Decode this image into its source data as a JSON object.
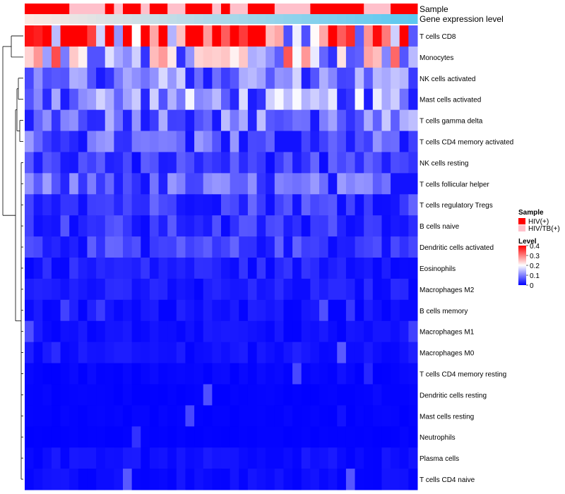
{
  "chart_data": {
    "type": "heatmap",
    "annotation_tracks": [
      {
        "label": "Sample"
      },
      {
        "label": "Gene expression level"
      }
    ],
    "sample_groups": [
      "HIV(+)",
      "HIV/TB(+)",
      "HIV(+)",
      "HIV/TB(+)",
      "HIV(+)",
      "HIV/TB(+)",
      "HIV(+)",
      "HIV/TB(+)",
      "HIV(+)",
      "HIV/TB(+)",
      "HIV(+)",
      "HIV/TB(+)",
      "HIV(+)",
      "HIV/TB(+)",
      "HIV(+)",
      "HIV/TB(+)",
      "HIV(+)"
    ],
    "sample_group_lengths": [
      5,
      4,
      1,
      1,
      2,
      1,
      2,
      2,
      3,
      1,
      1,
      2,
      3,
      4,
      6,
      3,
      3
    ],
    "gene_expression_gradient": {
      "from": "#fde8e2",
      "to": "#5cc8f0"
    },
    "rows": [
      "T cells CD8",
      "Monocytes",
      "NK cells activated",
      "Mast cells activated",
      "T cells gamma delta",
      "T cells CD4 memory activated",
      "NK cells resting",
      "T cells follicular helper",
      "T cells regulatory  Tregs",
      "B cells naive",
      "Dendritic cells activated",
      "Eosinophils",
      "Macrophages M2",
      "B cells memory",
      "Macrophages M1",
      "Macrophages M0",
      "T cells CD4 memory resting",
      "Dendritic cells resting",
      "Mast cells resting",
      "Neutrophils",
      "Plasma cells",
      "T cells CD4 naive"
    ],
    "row_means": [
      0.31,
      0.19,
      0.1,
      0.11,
      0.09,
      0.07,
      0.045,
      0.07,
      0.05,
      0.04,
      0.045,
      0.025,
      0.02,
      0.015,
      0.012,
      0.015,
      0.005,
      0.003,
      0.003,
      0.002,
      0.012,
      0.01
    ],
    "n_columns": 44,
    "legend": {
      "sample_title": "Sample",
      "sample_entries": [
        {
          "label": "HIV(+)",
          "color": "#ff0000"
        },
        {
          "label": "HIV/TB(+)",
          "color": "#ffc0cb"
        }
      ],
      "level_title": "Level",
      "level_ticks": [
        "0",
        "0.1",
        "0.2",
        "0.3",
        "0.4"
      ],
      "level_range": [
        0,
        0.4
      ]
    },
    "colors": {
      "low": "#0000ff",
      "mid": "#ffffff",
      "high": "#ff0000"
    }
  }
}
